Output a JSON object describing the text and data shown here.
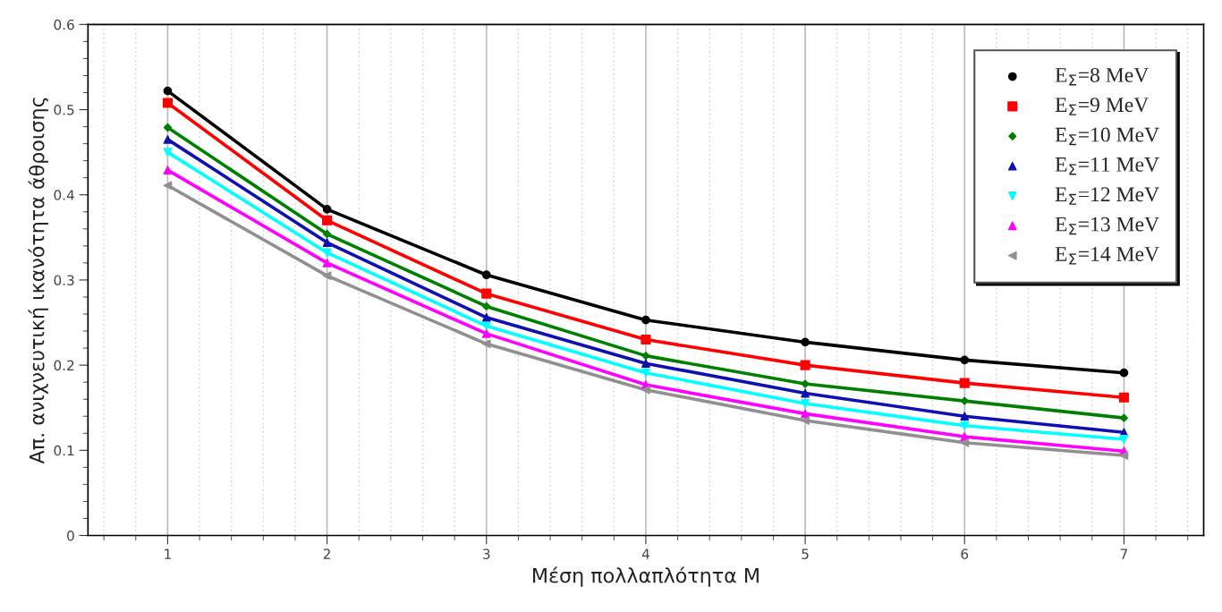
{
  "chart_data": {
    "type": "line",
    "xlabel": "Μέση πολλαπλότητα M",
    "ylabel": "Απ. ανιχνευτική ικανότητα άθροισης",
    "x": [
      1,
      2,
      3,
      4,
      5,
      6,
      7
    ],
    "series": [
      {
        "name": "E$_{Σ}$=8 MeV",
        "color": "#000000",
        "marker": "circle",
        "values": [
          0.522,
          0.383,
          0.306,
          0.253,
          0.227,
          0.206,
          0.191
        ]
      },
      {
        "name": "E$_{Σ}$=9 MeV",
        "color": "#ff0000",
        "marker": "square",
        "values": [
          0.508,
          0.37,
          0.284,
          0.23,
          0.2,
          0.179,
          0.162
        ]
      },
      {
        "name": "E$_{Σ}$=10 MeV",
        "color": "#008000",
        "marker": "diamond",
        "values": [
          0.479,
          0.354,
          0.269,
          0.211,
          0.178,
          0.158,
          0.138
        ]
      },
      {
        "name": "E$_{Σ}$=11 MeV",
        "color": "#1010b0",
        "marker": "triangle",
        "values": [
          0.465,
          0.344,
          0.256,
          0.202,
          0.167,
          0.14,
          0.121
        ]
      },
      {
        "name": "E$_{Σ}$=12 MeV",
        "color": "#00ffff",
        "marker": "triangle-down",
        "values": [
          0.45,
          0.332,
          0.246,
          0.191,
          0.155,
          0.129,
          0.113
        ]
      },
      {
        "name": "E$_{Σ}$=13 MeV",
        "color": "#ff00ff",
        "marker": "triangle",
        "values": [
          0.429,
          0.32,
          0.237,
          0.177,
          0.143,
          0.116,
          0.099
        ]
      },
      {
        "name": "E$_{Σ}$=14 MeV",
        "color": "#909090",
        "marker": "triangle-left",
        "values": [
          0.411,
          0.305,
          0.225,
          0.171,
          0.135,
          0.109,
          0.094
        ]
      }
    ],
    "xlim": [
      0.5,
      7.5
    ],
    "xticks": [
      1,
      2,
      3,
      4,
      5,
      6,
      7
    ],
    "ylim": [
      0,
      0.6
    ],
    "yticks": [
      0,
      0.1,
      0.2,
      0.3,
      0.4,
      0.5,
      0.6
    ],
    "grid": "x",
    "legend": "top right",
    "line_style": "solid"
  }
}
